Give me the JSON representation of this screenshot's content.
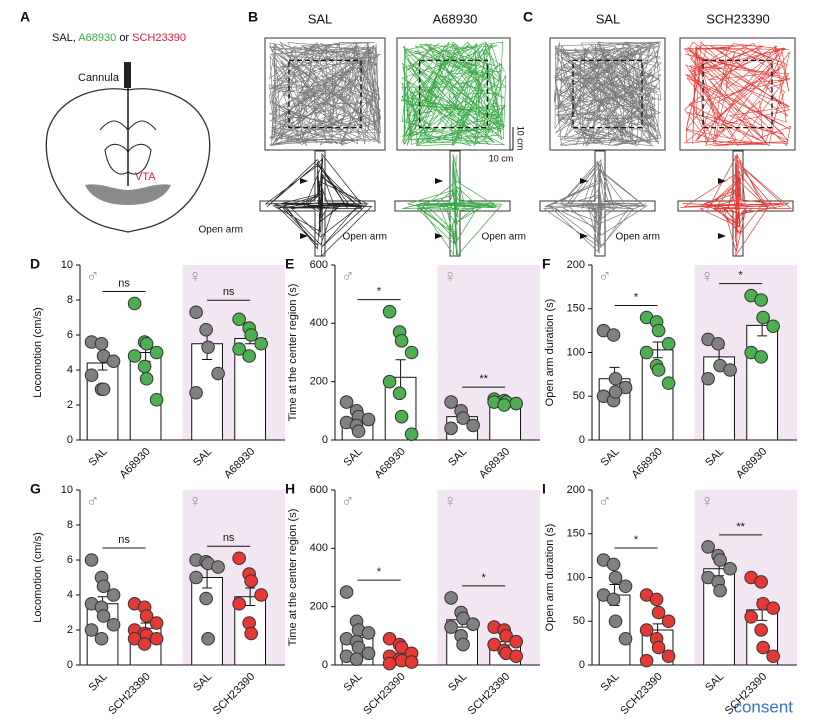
{
  "panel_a": {
    "label": "A",
    "drugs": [
      "SAL,",
      "A68930",
      "or",
      "SCH23390"
    ],
    "cannula": "Cannula",
    "region": "VTA"
  },
  "panel_b": {
    "label": "B",
    "titles": [
      "SAL",
      "A68930"
    ],
    "scale_v": "10 cm",
    "scale_h": "10 cm",
    "open_arm": "Open arm"
  },
  "panel_c": {
    "label": "C",
    "titles": [
      "SAL",
      "SCH23390"
    ],
    "open_arm": "Open arm"
  },
  "footer_link": "consent",
  "chart_data": [
    {
      "type": "bar",
      "label": "D",
      "ylabel": "Locomotion (cm/s)",
      "categories": [
        "SAL",
        "A68930",
        "SAL",
        "A68930"
      ],
      "sexes": [
        "♂",
        "♀"
      ],
      "colors": [
        "#808080",
        "#4caf50",
        "#808080",
        "#4caf50"
      ],
      "shade": "#f1e6f1",
      "values": [
        4.4,
        5.0,
        5.5,
        5.8
      ],
      "errors": [
        0.4,
        0.5,
        0.9,
        0.3
      ],
      "points": [
        [
          5.6,
          5.5,
          4.8,
          4.5,
          3.7,
          2.9,
          2.9
        ],
        [
          7.8,
          5.6,
          5.5,
          5.0,
          4.8,
          4.2,
          3.5,
          2.3
        ],
        [
          7.3,
          6.3,
          5.3,
          3.8,
          2.7
        ],
        [
          6.9,
          6.4,
          6.0,
          5.5,
          5.2,
          4.8
        ]
      ],
      "annotations": [
        "ns",
        "ns"
      ],
      "ylim": [
        0,
        10
      ],
      "yticks": [
        0,
        2,
        4,
        6,
        8,
        10
      ]
    },
    {
      "type": "bar",
      "label": "E",
      "ylabel": "Time at the center region (s)",
      "categories": [
        "SAL",
        "A68930",
        "SAL",
        "A68930"
      ],
      "sexes": [
        "♂",
        "♀"
      ],
      "colors": [
        "#808080",
        "#4caf50",
        "#808080",
        "#4caf50"
      ],
      "shade": "#f1e6f1",
      "values": [
        75,
        215,
        80,
        130
      ],
      "errors": [
        15,
        60,
        20,
        8
      ],
      "points": [
        [
          130,
          100,
          80,
          70,
          60,
          50,
          30
        ],
        [
          440,
          370,
          340,
          300,
          200,
          160,
          80,
          20
        ],
        [
          130,
          100,
          75,
          50,
          40
        ],
        [
          140,
          135,
          130,
          125,
          130,
          120
        ]
      ],
      "annotations": [
        "*",
        "**"
      ],
      "ylim": [
        0,
        600
      ],
      "yticks": [
        0,
        200,
        400,
        600
      ]
    },
    {
      "type": "bar",
      "label": "F",
      "ylabel": "Open arm duration (s)",
      "categories": [
        "SAL",
        "A68930",
        "SAL",
        "A68930"
      ],
      "sexes": [
        "♂",
        "♀"
      ],
      "colors": [
        "#808080",
        "#4caf50",
        "#808080",
        "#4caf50"
      ],
      "shade": "#f1e6f1",
      "values": [
        70,
        103,
        95,
        131
      ],
      "errors": [
        13,
        9,
        10,
        12
      ],
      "points": [
        [
          125,
          120,
          70,
          60,
          50,
          45,
          55
        ],
        [
          140,
          135,
          125,
          110,
          100,
          85,
          80,
          65
        ],
        [
          115,
          110,
          85,
          80,
          70
        ],
        [
          165,
          160,
          140,
          130,
          100,
          95
        ]
      ],
      "annotations": [
        "*",
        "*"
      ],
      "ylim": [
        0,
        200
      ],
      "yticks": [
        0,
        50,
        100,
        150,
        200
      ]
    },
    {
      "type": "bar",
      "label": "G",
      "ylabel": "Locomotion (cm/s)",
      "categories": [
        "SAL",
        "SCH23390",
        "SAL",
        "SCH23390"
      ],
      "sexes": [
        "♂",
        "♀"
      ],
      "colors": [
        "#808080",
        "#e53935",
        "#808080",
        "#e53935"
      ],
      "shade": "#f1e6f1",
      "values": [
        3.5,
        2.1,
        5.0,
        3.9
      ],
      "errors": [
        0.4,
        0.3,
        0.6,
        0.5
      ],
      "points": [
        [
          6.0,
          5.0,
          4.5,
          4.0,
          3.5,
          3.3,
          2.8,
          2.3,
          2.0,
          1.5
        ],
        [
          3.5,
          3.3,
          2.8,
          2.4,
          2.0,
          1.8,
          1.7,
          1.5,
          1.5,
          1.2
        ],
        [
          6.0,
          5.9,
          5.8,
          5.6,
          5.0,
          3.8,
          1.5
        ],
        [
          6.1,
          5.2,
          4.8,
          4.0,
          3.5,
          2.4,
          1.8
        ]
      ],
      "annotations": [
        "ns",
        "ns"
      ],
      "ylim": [
        0,
        10
      ],
      "yticks": [
        0,
        2,
        4,
        6,
        8,
        10
      ]
    },
    {
      "type": "bar",
      "label": "H",
      "ylabel": "Time at the center region (s)",
      "categories": [
        "SAL",
        "SCH23390",
        "SAL",
        "SCH23390"
      ],
      "sexes": [
        "♂",
        "♀"
      ],
      "colors": [
        "#808080",
        "#e53935",
        "#808080",
        "#e53935"
      ],
      "shade": "#f1e6f1",
      "values": [
        95,
        40,
        155,
        80
      ],
      "errors": [
        25,
        8,
        25,
        12
      ],
      "points": [
        [
          250,
          150,
          120,
          110,
          90,
          80,
          60,
          40,
          30,
          20
        ],
        [
          90,
          70,
          60,
          40,
          30,
          20,
          15,
          10,
          5
        ],
        [
          230,
          180,
          160,
          140,
          130,
          100,
          70
        ],
        [
          130,
          120,
          100,
          80,
          70,
          50,
          40,
          30
        ]
      ],
      "annotations": [
        "*",
        "*"
      ],
      "ylim": [
        0,
        600
      ],
      "yticks": [
        0,
        200,
        400,
        600
      ]
    },
    {
      "type": "bar",
      "label": "I",
      "ylabel": "Open arm duration (s)",
      "categories": [
        "SAL",
        "SCH23390",
        "SAL",
        "SCH23390"
      ],
      "sexes": [
        "♂",
        "♀"
      ],
      "colors": [
        "#808080",
        "#e53935",
        "#808080",
        "#e53935"
      ],
      "shade": "#f1e6f1",
      "values": [
        80,
        40,
        110,
        63
      ],
      "errors": [
        12,
        7,
        8,
        12
      ],
      "points": [
        [
          120,
          115,
          100,
          90,
          80,
          75,
          50,
          30
        ],
        [
          80,
          75,
          60,
          50,
          40,
          30,
          20,
          10,
          5
        ],
        [
          135,
          125,
          120,
          110,
          100,
          95,
          85
        ],
        [
          100,
          95,
          70,
          65,
          55,
          40,
          20,
          10
        ]
      ],
      "annotations": [
        "*",
        "**"
      ],
      "ylim": [
        0,
        200
      ],
      "yticks": [
        0,
        50,
        100,
        150,
        200
      ]
    }
  ]
}
